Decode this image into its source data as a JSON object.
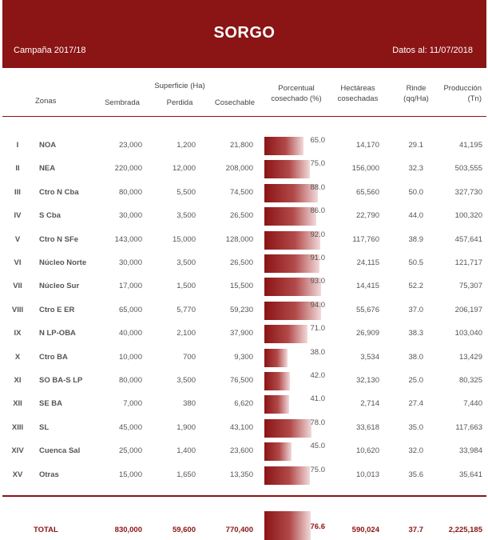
{
  "header": {
    "title": "SORGO",
    "campaign": "Campaña 2017/18",
    "data_date": "Datos al: 11/07/2018",
    "accent_color": "#8b1414"
  },
  "columns": {
    "zonas": "Zonas",
    "superficie": "Superficie (Ha)",
    "sembrada": "Sembrada",
    "perdida": "Perdida",
    "cosechable": "Cosechable",
    "porcentual_line1": "Porcentual",
    "porcentual_line2": "cosechado (%)",
    "hectareas_line1": "Hectáreas",
    "hectareas_line2": "cosechadas",
    "rinde_line1": "Rinde",
    "rinde_line2": "(qq/Ha)",
    "produccion_line1": "Producción",
    "produccion_line2": "(Tn)"
  },
  "rows": [
    {
      "num": "I",
      "zona": "NOA",
      "sembrada": "23,000",
      "perdida": "1,200",
      "cosechable": "21,800",
      "pct": "65.0",
      "hectareas": "14,170",
      "rinde": "29.1",
      "produccion": "41,195"
    },
    {
      "num": "II",
      "zona": "NEA",
      "sembrada": "220,000",
      "perdida": "12,000",
      "cosechable": "208,000",
      "pct": "75.0",
      "hectareas": "156,000",
      "rinde": "32.3",
      "produccion": "503,555"
    },
    {
      "num": "III",
      "zona": "Ctro N Cba",
      "sembrada": "80,000",
      "perdida": "5,500",
      "cosechable": "74,500",
      "pct": "88.0",
      "hectareas": "65,560",
      "rinde": "50.0",
      "produccion": "327,730"
    },
    {
      "num": "IV",
      "zona": "S Cba",
      "sembrada": "30,000",
      "perdida": "3,500",
      "cosechable": "26,500",
      "pct": "86.0",
      "hectareas": "22,790",
      "rinde": "44.0",
      "produccion": "100,320"
    },
    {
      "num": "V",
      "zona": "Ctro N SFe",
      "sembrada": "143,000",
      "perdida": "15,000",
      "cosechable": "128,000",
      "pct": "92.0",
      "hectareas": "117,760",
      "rinde": "38.9",
      "produccion": "457,641"
    },
    {
      "num": "VI",
      "zona": "Núcleo Norte",
      "sembrada": "30,000",
      "perdida": "3,500",
      "cosechable": "26,500",
      "pct": "91.0",
      "hectareas": "24,115",
      "rinde": "50.5",
      "produccion": "121,717"
    },
    {
      "num": "VII",
      "zona": "Núcleo Sur",
      "sembrada": "17,000",
      "perdida": "1,500",
      "cosechable": "15,500",
      "pct": "93.0",
      "hectareas": "14,415",
      "rinde": "52.2",
      "produccion": "75,307"
    },
    {
      "num": "VIII",
      "zona": "Ctro E ER",
      "sembrada": "65,000",
      "perdida": "5,770",
      "cosechable": "59,230",
      "pct": "94.0",
      "hectareas": "55,676",
      "rinde": "37.0",
      "produccion": "206,197"
    },
    {
      "num": "IX",
      "zona": "N LP-OBA",
      "sembrada": "40,000",
      "perdida": "2,100",
      "cosechable": "37,900",
      "pct": "71.0",
      "hectareas": "26,909",
      "rinde": "38.3",
      "produccion": "103,040"
    },
    {
      "num": "X",
      "zona": "Ctro BA",
      "sembrada": "10,000",
      "perdida": "700",
      "cosechable": "9,300",
      "pct": "38.0",
      "hectareas": "3,534",
      "rinde": "38.0",
      "produccion": "13,429"
    },
    {
      "num": "XI",
      "zona": "SO BA-S LP",
      "sembrada": "80,000",
      "perdida": "3,500",
      "cosechable": "76,500",
      "pct": "42.0",
      "hectareas": "32,130",
      "rinde": "25.0",
      "produccion": "80,325"
    },
    {
      "num": "XII",
      "zona": "SE BA",
      "sembrada": "7,000",
      "perdida": "380",
      "cosechable": "6,620",
      "pct": "41.0",
      "hectareas": "2,714",
      "rinde": "27.4",
      "produccion": "7,440"
    },
    {
      "num": "XIII",
      "zona": "SL",
      "sembrada": "45,000",
      "perdida": "1,900",
      "cosechable": "43,100",
      "pct": "78.0",
      "hectareas": "33,618",
      "rinde": "35.0",
      "produccion": "117,663"
    },
    {
      "num": "XIV",
      "zona": "Cuenca Sal",
      "sembrada": "25,000",
      "perdida": "1,400",
      "cosechable": "23,600",
      "pct": "45.0",
      "hectareas": "10,620",
      "rinde": "32.0",
      "produccion": "33,984"
    },
    {
      "num": "XV",
      "zona": "Otras",
      "sembrada": "15,000",
      "perdida": "1,650",
      "cosechable": "13,350",
      "pct": "75.0",
      "hectareas": "10,013",
      "rinde": "35.6",
      "produccion": "35,641"
    }
  ],
  "total": {
    "label": "TOTAL",
    "sembrada": "830,000",
    "perdida": "59,600",
    "cosechable": "770,400",
    "pct": "76.6",
    "hectareas": "590,024",
    "rinde": "37.7",
    "produccion": "2,225,185"
  }
}
